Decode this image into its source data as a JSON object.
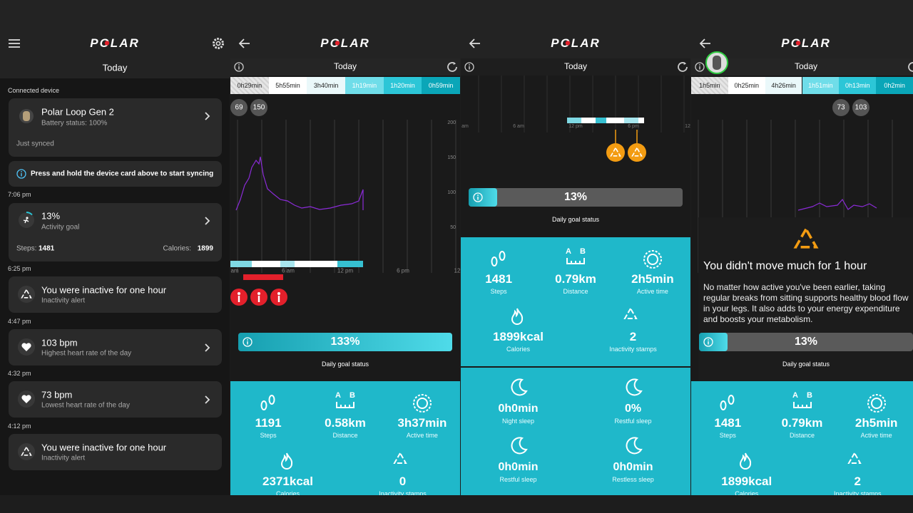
{
  "logo": "POLAR",
  "distance_icon_letters": [
    "A",
    "B"
  ],
  "feed": {
    "title": "Today",
    "section": "Connected device",
    "device": {
      "name": "Polar Loop Gen 2",
      "battery": "Battery status: 100%",
      "sync": "Just synced"
    },
    "hint": "Press and hold the device card above to start syncing",
    "activity": {
      "time": "7:06 pm",
      "percent": "13%",
      "label": "Activity goal",
      "steps_label": "Steps:",
      "steps": "1481",
      "calories_label": "Calories:",
      "calories": "1899"
    },
    "events": [
      {
        "time": "6:25 pm",
        "title": "You were inactive for one hour",
        "subtitle": "Inactivity alert"
      },
      {
        "time": "4:47 pm",
        "title": "103 bpm",
        "subtitle": "Highest heart rate of the day"
      },
      {
        "time": "4:32 pm",
        "title": "73 bpm",
        "subtitle": "Lowest heart rate of the day"
      },
      {
        "time": "4:12 pm",
        "title": "You were inactive for one hour",
        "subtitle": "Inactivity alert"
      }
    ]
  },
  "panels": [
    {
      "title": "Today",
      "zones": [
        "0h29min",
        "5h55min",
        "3h40min",
        "1h19min",
        "1h20min",
        "0h59min"
      ],
      "hr_badges": [
        "69",
        "150"
      ],
      "x_axis": [
        "am",
        "6 am",
        "12 pm",
        "6 pm",
        "12"
      ],
      "y_axis": [
        "200",
        "150",
        "100",
        "50"
      ],
      "goal": "133%",
      "goal_caption": "Daily goal status",
      "stats": [
        {
          "value": "1191",
          "label": "Steps"
        },
        {
          "value": "0.58km",
          "label": "Distance"
        },
        {
          "value": "3h37min",
          "label": "Active time"
        },
        {
          "value": "2371kcal",
          "label": "Calories"
        },
        {
          "value": "0",
          "label": "Inactivity stamps"
        }
      ]
    },
    {
      "title": "Today",
      "x_axis": [
        "am",
        "6 am",
        "12 pm",
        "6 pm",
        "12"
      ],
      "goal": "13%",
      "goal_caption": "Daily goal status",
      "stats": [
        {
          "value": "1481",
          "label": "Steps"
        },
        {
          "value": "0.79km",
          "label": "Distance"
        },
        {
          "value": "2h5min",
          "label": "Active time"
        },
        {
          "value": "1899kcal",
          "label": "Calories"
        },
        {
          "value": "2",
          "label": "Inactivity stamps"
        }
      ],
      "sleep": [
        {
          "value": "0h0min",
          "label": "Night sleep"
        },
        {
          "value": "0%",
          "label": "Restful sleep"
        },
        {
          "value": "0h0min",
          "label": "Restful sleep"
        },
        {
          "value": "0h0min",
          "label": "Restless sleep"
        }
      ]
    },
    {
      "title": "Today",
      "zones": [
        "1h5min",
        "0h25min",
        "4h26min",
        "1h51min",
        "0h13min",
        "0h2min"
      ],
      "hr_badges": [
        "73",
        "103"
      ],
      "popup": {
        "title": "You didn't move much for 1 hour",
        "body": "No matter how active you've been earlier, taking regular breaks from sitting supports healthy blood flow in your legs. It also adds to your energy expenditure and boosts your metabolism."
      },
      "goal": "13%",
      "goal_caption": "Daily goal status",
      "stats": [
        {
          "value": "1481",
          "label": "Steps"
        },
        {
          "value": "0.79km",
          "label": "Distance"
        },
        {
          "value": "2h5min",
          "label": "Active time"
        },
        {
          "value": "1899kcal",
          "label": "Calories"
        },
        {
          "value": "2",
          "label": "Inactivity stamps"
        }
      ]
    }
  ]
}
